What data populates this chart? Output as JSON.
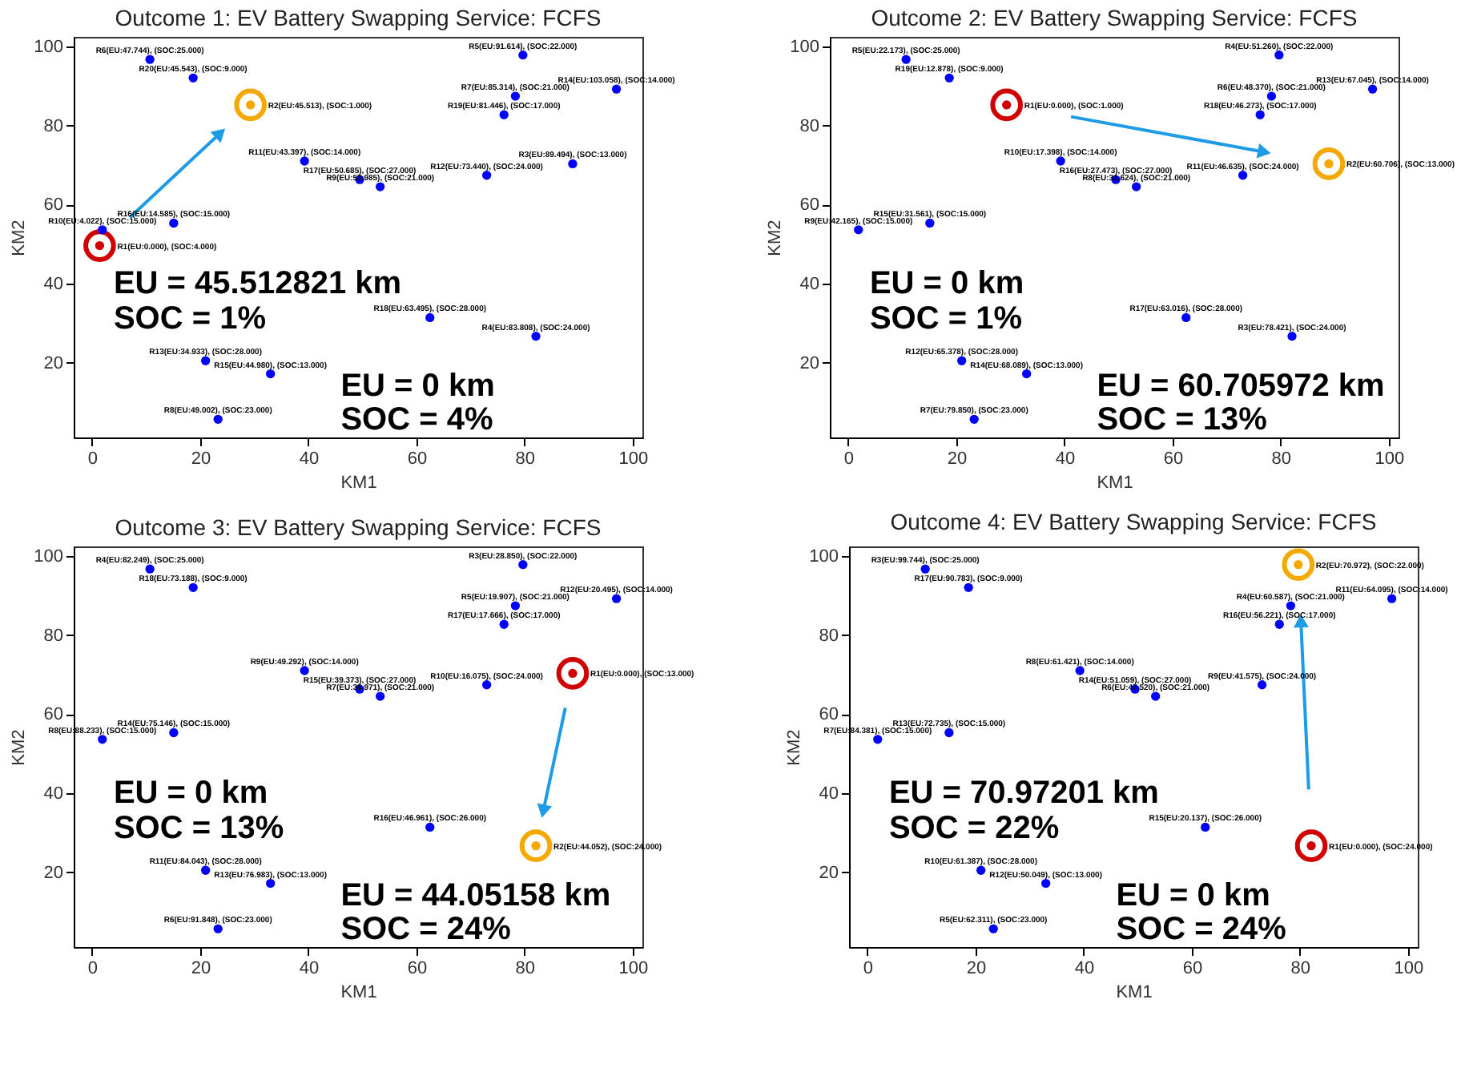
{
  "chart_data": [
    {
      "type": "scatter",
      "title": "Outcome 1: EV Battery Swapping Service: FCFS",
      "xlabel": "KM1",
      "ylabel": "KM2",
      "xlim": [
        -3.4,
        101.8
      ],
      "ylim": [
        1.1,
        102.4
      ],
      "xticks": [
        0,
        20,
        40,
        60,
        80,
        100
      ],
      "yticks": [
        20,
        40,
        60,
        80,
        100
      ],
      "marker": "circle",
      "annotations": [
        "EU = 45.512821 km",
        "SOC = 1%",
        "EU = 0 km",
        "SOC = 4%"
      ],
      "series": [
        {
          "color": "#0000ff",
          "x": [
            10.7,
            18.7,
            79.7,
            97.0,
            78.3,
            76.2,
            39.3,
            88.9,
            73.0,
            49.5,
            53.3,
            15.1,
            1.9,
            62.5,
            82.1,
            21.0,
            33.0,
            23.3
          ],
          "values": [
            96.7,
            92.0,
            97.8,
            89.2,
            87.4,
            82.7,
            71.0,
            70.3,
            67.4,
            66.3,
            64.5,
            55.3,
            53.6,
            31.4,
            26.7,
            20.5,
            17.2,
            5.7
          ],
          "value_labels": [
            "R6(EU:47.744), (SOC:25.000)",
            "R20(EU:45.543), (SOC:9.000)",
            "R5(EU:91.614), (SOC:22.000)",
            "R14(EU:103.058), (SOC:14.000)",
            "R7(EU:85.314), (SOC:21.000)",
            "R19(EU:81.446), (SOC:17.000)",
            "R11(EU:43.397), (SOC:14.000)",
            "R3(EU:89.494), (SOC:13.000)",
            "R12(EU:73.440), (SOC:24.000)",
            "R17(EU:50.685), (SOC:27.000)",
            "R9(EU:53.985), (SOC:21.000)",
            "R16(EU:14.585), (SOC:15.000)",
            "R10(EU:4.022), (SOC:15.000)",
            "R18(EU:63.495), (SOC:28.000)",
            "R4(EU:83.808), (SOC:24.000)",
            "R13(EU:34.933), (SOC:28.000)",
            "R15(EU:44.980), (SOC:13.000)",
            "R8(EU:49.002), (SOC:23.000)"
          ]
        },
        {
          "color": "#d00000",
          "x": [
            1.4
          ],
          "values": [
            49.6
          ],
          "value_labels": [
            "R1(EU:0.000), (SOC:4.000)"
          ]
        },
        {
          "color": "#f5a800",
          "x": [
            29.3
          ],
          "values": [
            85.2
          ],
          "value_labels": [
            "R2(EU:45.513), (SOC:1.000)"
          ]
        }
      ]
    },
    {
      "type": "scatter",
      "title": "Outcome 2: EV Battery Swapping Service: FCFS",
      "xlabel": "KM1",
      "ylabel": "KM2",
      "xlim": [
        -3.4,
        101.8
      ],
      "ylim": [
        1.1,
        102.4
      ],
      "xticks": [
        0,
        20,
        40,
        60,
        80,
        100
      ],
      "yticks": [
        20,
        40,
        60,
        80,
        100
      ],
      "marker": "circle",
      "annotations": [
        "EU = 0 km",
        "SOC = 1%",
        "EU = 60.705972 km",
        "SOC = 13%"
      ],
      "series": [
        {
          "color": "#0000ff",
          "x": [
            10.7,
            18.7,
            79.7,
            97.0,
            78.3,
            76.2,
            39.3,
            73.0,
            49.5,
            53.3,
            15.1,
            1.9,
            62.5,
            82.1,
            21.0,
            33.0,
            23.3
          ],
          "values": [
            96.7,
            92.0,
            97.8,
            89.2,
            87.4,
            82.7,
            71.0,
            67.4,
            66.3,
            64.5,
            55.3,
            53.6,
            31.4,
            26.7,
            20.5,
            17.2,
            5.7
          ],
          "value_labels": [
            "R5(EU:22.173), (SOC:25.000)",
            "R19(EU:12.878), (SOC:9.000)",
            "R4(EU:51.260), (SOC:22.000)",
            "R13(EU:67.045), (SOC:14.000)",
            "R6(EU:48.370), (SOC:21.000)",
            "R18(EU:46.273), (SOC:17.000)",
            "R10(EU:17.398), (SOC:14.000)",
            "R11(EU:46.635), (SOC:24.000)",
            "R16(EU:27.473), (SOC:27.000)",
            "R8(EU:31.624), (SOC:21.000)",
            "R15(EU:31.561), (SOC:15.000)",
            "R9(EU:42.165), (SOC:15.000)",
            "R17(EU:63.016), (SOC:28.000)",
            "R3(EU:78.421), (SOC:24.000)",
            "R12(EU:65.378), (SOC:28.000)",
            "R14(EU:68.089), (SOC:13.000)",
            "R7(EU:79.850), (SOC:23.000)"
          ]
        },
        {
          "color": "#d00000",
          "x": [
            29.3
          ],
          "values": [
            85.2
          ],
          "value_labels": [
            "R1(EU:0.000), (SOC:1.000)"
          ]
        },
        {
          "color": "#f5a800",
          "x": [
            88.9
          ],
          "values": [
            70.3
          ],
          "value_labels": [
            "R2(EU:60.706), (SOC:13.000)"
          ]
        }
      ]
    },
    {
      "type": "scatter",
      "title": "Outcome 3: EV Battery Swapping Service: FCFS",
      "xlabel": "KM1",
      "ylabel": "KM2",
      "xlim": [
        -3.4,
        101.8
      ],
      "ylim": [
        1.1,
        102.4
      ],
      "xticks": [
        0,
        20,
        40,
        60,
        80,
        100
      ],
      "yticks": [
        20,
        40,
        60,
        80,
        100
      ],
      "marker": "circle",
      "annotations": [
        "EU = 0 km",
        "SOC = 13%",
        "EU = 44.05158 km",
        "SOC = 24%"
      ],
      "series": [
        {
          "color": "#0000ff",
          "x": [
            10.7,
            18.7,
            79.7,
            97.0,
            78.3,
            76.2,
            39.3,
            73.0,
            49.5,
            53.3,
            15.1,
            1.9,
            62.5,
            21.0,
            33.0,
            23.3
          ],
          "values": [
            96.7,
            92.0,
            97.8,
            89.2,
            87.4,
            82.7,
            71.0,
            67.4,
            66.3,
            64.5,
            55.3,
            53.6,
            31.4,
            20.5,
            17.2,
            5.7
          ],
          "value_labels": [
            "R4(EU:82.249), (SOC:25.000)",
            "R18(EU:73.188), (SOC:9.000)",
            "R3(EU:28.850), (SOC:22.000)",
            "R12(EU:20.495), (SOC:14.000)",
            "R5(EU:19.907), (SOC:21.000)",
            "R17(EU:17.666), (SOC:17.000)",
            "R9(EU:49.292), (SOC:14.000)",
            "R10(EU:16.075), (SOC:24.000)",
            "R15(EU:39.373), (SOC:27.000)",
            "R7(EU:35.971), (SOC:21.000)",
            "R14(EU:75.146), (SOC:15.000)",
            "R8(EU:88.233), (SOC:15.000)",
            "R16(EU:46.961), (SOC:26.000)",
            "R11(EU:84.043), (SOC:28.000)",
            "R13(EU:76.983), (SOC:13.000)",
            "R6(EU:91.848), (SOC:23.000)"
          ]
        },
        {
          "color": "#d00000",
          "x": [
            88.9
          ],
          "values": [
            70.3
          ],
          "value_labels": [
            "R1(EU:0.000), (SOC:13.000)"
          ]
        },
        {
          "color": "#f5a800",
          "x": [
            82.1
          ],
          "values": [
            26.7
          ],
          "value_labels": [
            "R2(EU:44.052), (SOC:24.000)"
          ]
        }
      ]
    },
    {
      "type": "scatter",
      "title": "Outcome 4: EV Battery Swapping Service: FCFS",
      "xlabel": "KM1",
      "ylabel": "KM2",
      "xlim": [
        -3.4,
        101.8
      ],
      "ylim": [
        1.1,
        102.4
      ],
      "xticks": [
        0,
        20,
        40,
        60,
        80,
        100
      ],
      "yticks": [
        20,
        40,
        60,
        80,
        100
      ],
      "marker": "circle",
      "annotations": [
        "EU = 70.97201 km",
        "SOC = 22%",
        "EU = 0 km",
        "SOC = 24%"
      ],
      "series": [
        {
          "color": "#0000ff",
          "x": [
            10.7,
            18.7,
            97.0,
            78.3,
            76.2,
            39.3,
            73.0,
            49.5,
            53.3,
            15.1,
            1.9,
            62.5,
            21.0,
            33.0,
            23.3
          ],
          "values": [
            96.7,
            92.0,
            89.2,
            87.4,
            82.7,
            71.0,
            67.4,
            66.3,
            64.5,
            55.3,
            53.6,
            31.4,
            20.5,
            17.2,
            5.7
          ],
          "value_labels": [
            "R3(EU:99.744), (SOC:25.000)",
            "R17(EU:90.783), (SOC:9.000)",
            "R11(EU:64.095), (SOC:14.000)",
            "R4(EU:60.587), (SOC:21.000)",
            "R16(EU:56.221), (SOC:17.000)",
            "R8(EU:61.421), (SOC:14.000)",
            "R9(EU:41.575), (SOC:24.000)",
            "R14(EU:51.059), (SOC:27.000)",
            "R6(EU:47.520), (SOC:21.000)",
            "R13(EU:72.735), (SOC:15.000)",
            "R7(EU:84.381), (SOC:15.000)",
            "R15(EU:20.137), (SOC:26.000)",
            "R10(EU:61.387), (SOC:28.000)",
            "R12(EU:50.049), (SOC:13.000)",
            "R5(EU:62.311), (SOC:23.000)"
          ]
        },
        {
          "color": "#d00000",
          "x": [
            82.1
          ],
          "values": [
            26.7
          ],
          "value_labels": [
            "R1(EU:0.000), (SOC:24.000)"
          ]
        },
        {
          "color": "#f5a800",
          "x": [
            79.7
          ],
          "values": [
            97.8
          ],
          "value_labels": [
            "R2(EU:70.972), (SOC:22.000)"
          ]
        }
      ]
    }
  ]
}
